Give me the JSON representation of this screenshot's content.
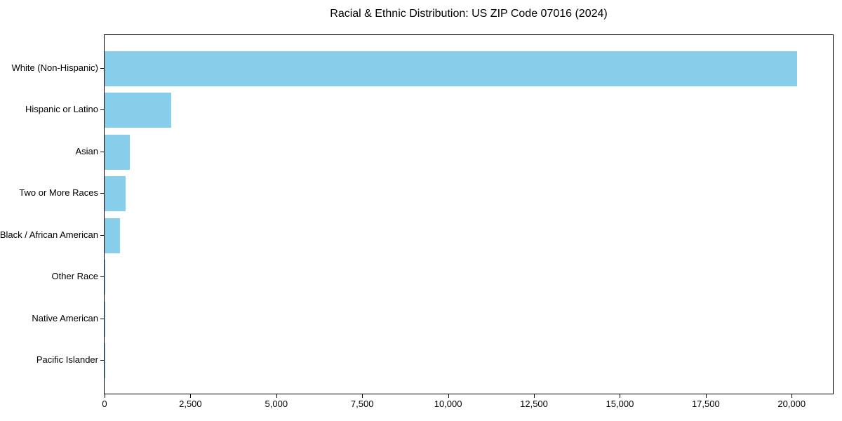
{
  "chart_data": {
    "type": "bar",
    "orientation": "horizontal",
    "title": "Racial & Ethnic Distribution: US ZIP Code 07016 (2024)",
    "categories": [
      "White (Non-Hispanic)",
      "Hispanic or Latino",
      "Asian",
      "Two or More Races",
      "Black / African American",
      "Other Race",
      "Native American",
      "Pacific Islander"
    ],
    "values": [
      20150,
      1940,
      745,
      620,
      445,
      25,
      10,
      4
    ],
    "xlabel": "",
    "ylabel": "",
    "xlim": [
      0,
      21200
    ],
    "xticks": [
      0,
      2500,
      5000,
      7500,
      10000,
      12500,
      15000,
      17500,
      20000
    ],
    "xtick_labels": [
      "0",
      "2,500",
      "5,000",
      "7,500",
      "10,000",
      "12,500",
      "15,000",
      "17,500",
      "20,000"
    ],
    "grid": false,
    "legend_position": "none",
    "bar_color": "#87ceeb",
    "axis_color": "#000000",
    "text_color": "#000000",
    "background_color": "#ffffff"
  }
}
